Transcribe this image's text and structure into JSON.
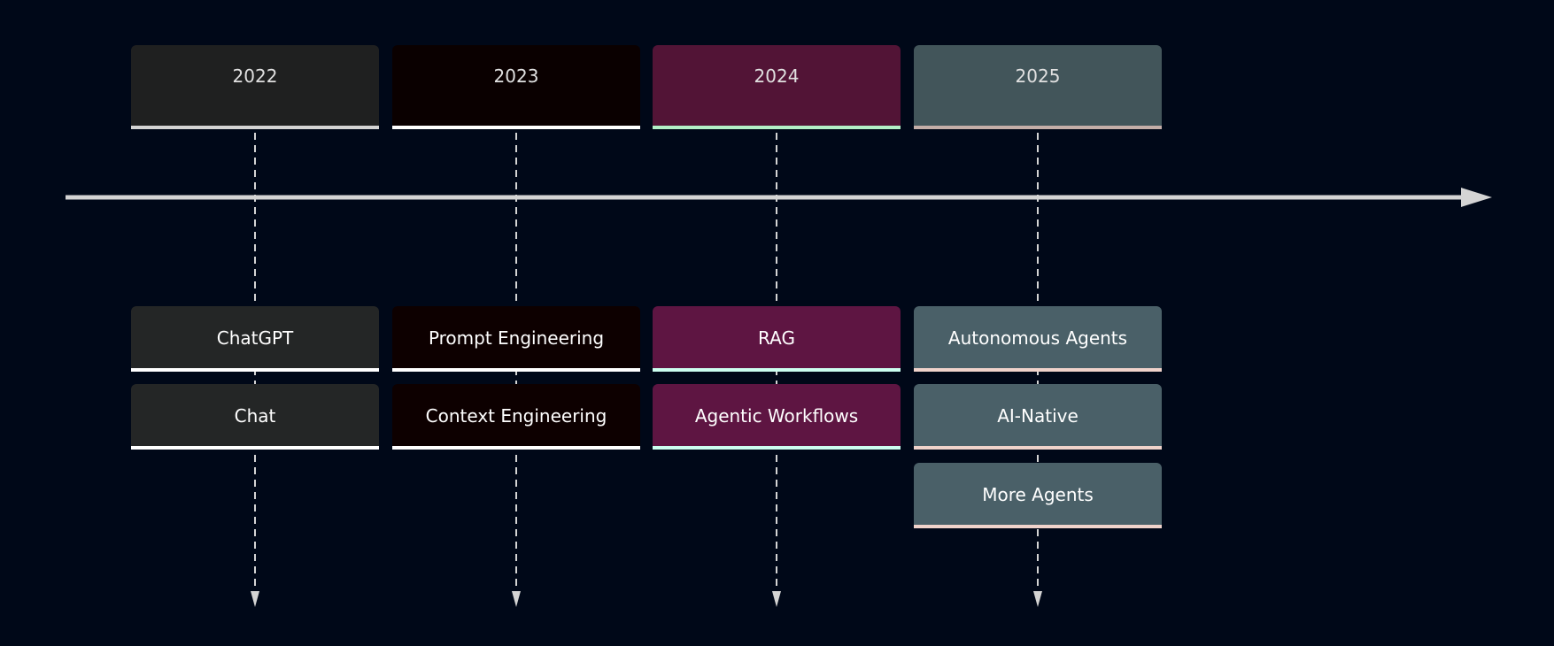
{
  "periods": [
    {
      "year": "2022",
      "color": "#1f2020",
      "accent": "#d4d4d4",
      "task_color": "#242626",
      "task_accent": "#ffffff",
      "events": [
        "ChatGPT",
        "Chat"
      ]
    },
    {
      "year": "2023",
      "color": "#0a0000",
      "accent": "#ffffff",
      "task_color": "#0d0000",
      "task_accent": "#ffffff",
      "events": [
        "Prompt Engineering",
        "Context Engineering"
      ]
    },
    {
      "year": "2024",
      "color": "#521436",
      "accent": "#b3f0c7",
      "task_color": "#5e1542",
      "task_accent": "#ccfff0",
      "events": [
        "RAG",
        "Agentic Workflows"
      ]
    },
    {
      "year": "2025",
      "color": "#42555a",
      "accent": "#c4aea8",
      "task_color": "#4a6068",
      "task_accent": "#f0d3cb",
      "events": [
        "Autonomous Agents",
        "AI-Native",
        "More Agents"
      ]
    }
  ],
  "line_color": "#d4d4d4",
  "background": "#000818"
}
